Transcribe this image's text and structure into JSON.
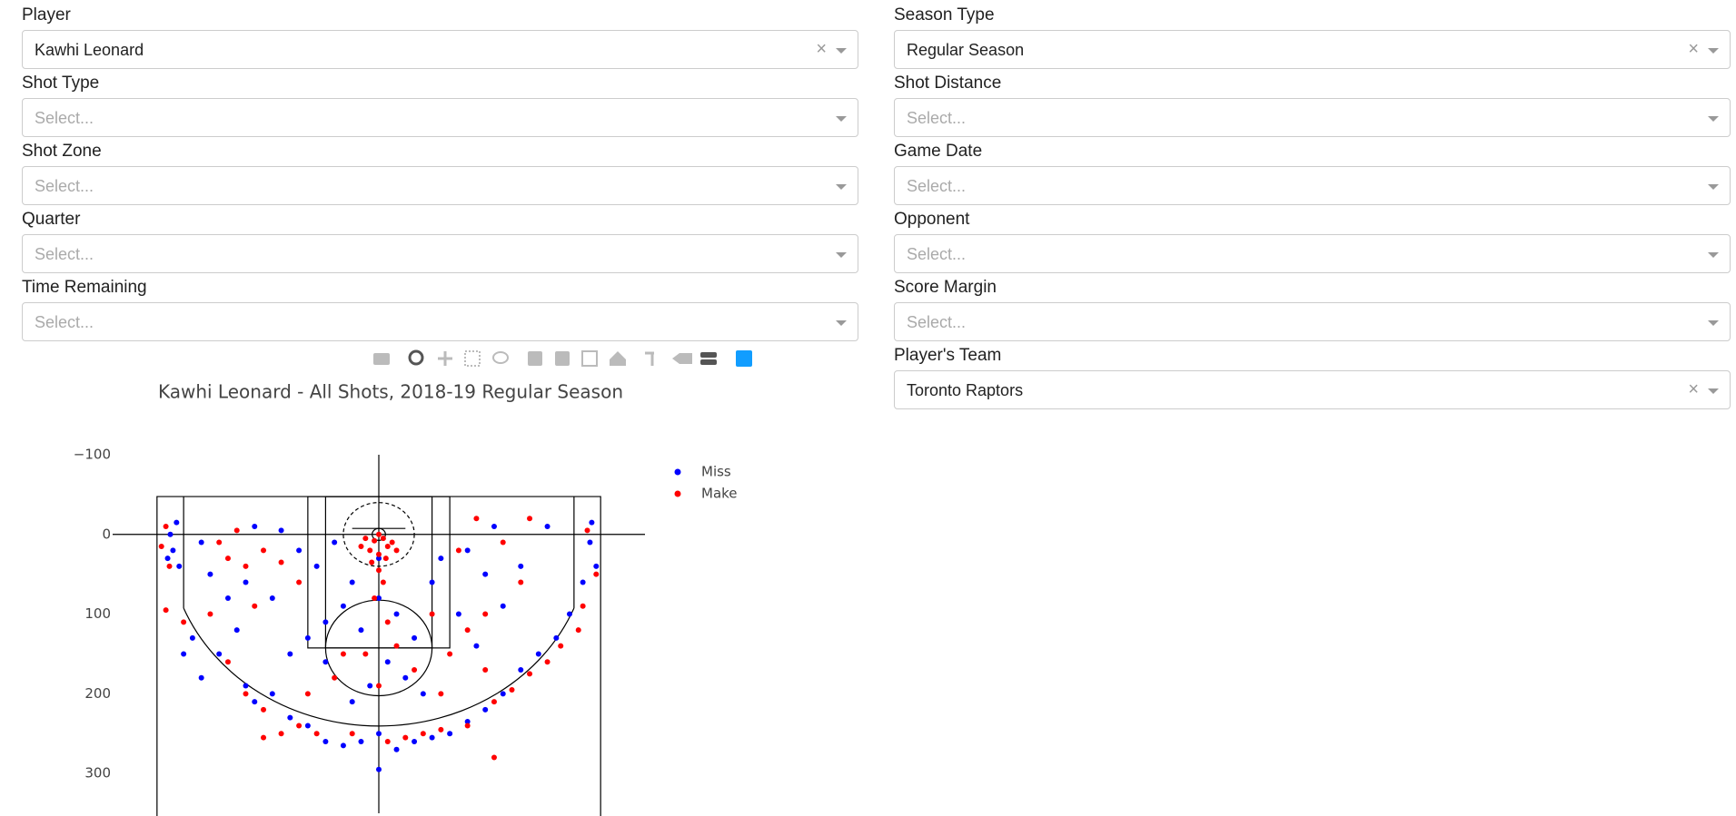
{
  "filters": {
    "left": [
      {
        "label": "Player",
        "value": "Kawhi Leonard"
      },
      {
        "label": "Shot Type",
        "placeholder": "Select..."
      },
      {
        "label": "Shot Zone",
        "placeholder": "Select..."
      },
      {
        "label": "Quarter",
        "placeholder": "Select..."
      },
      {
        "label": "Time Remaining",
        "placeholder": "Select..."
      }
    ],
    "right": [
      {
        "label": "Season Type",
        "value": "Regular Season"
      },
      {
        "label": "Shot Distance",
        "placeholder": "Select..."
      },
      {
        "label": "Game Date",
        "placeholder": "Select..."
      },
      {
        "label": "Opponent",
        "placeholder": "Select..."
      },
      {
        "label": "Score Margin",
        "placeholder": "Select..."
      },
      {
        "label": "Player's Team",
        "value": "Toronto Raptors"
      }
    ]
  },
  "chart_data": {
    "type": "scatter",
    "title": "Kawhi Leonard - All Shots, 2018-19 Regular Season",
    "xlim": [
      -300,
      300
    ],
    "ylim": [
      -100,
      350
    ],
    "yticks": [
      {
        "value": -100,
        "label": "−100"
      },
      0,
      100,
      200,
      300
    ],
    "series": [
      {
        "name": "Miss",
        "color": "#0000ff",
        "x": [
          -235,
          -232,
          -238,
          -228,
          -225,
          -190,
          -170,
          -200,
          -160,
          -210,
          -180,
          -150,
          -140,
          -120,
          -100,
          -80,
          -60,
          -40,
          -20,
          0,
          0,
          20,
          40,
          60,
          80,
          100,
          120,
          140,
          160,
          180,
          200,
          215,
          240,
          238,
          245,
          230,
          -100,
          -80,
          -60,
          -40,
          -20,
          0,
          20,
          40,
          60,
          70,
          -70,
          -50,
          -30,
          0,
          10,
          -10,
          30,
          -120,
          -90,
          100,
          120,
          90,
          110,
          130,
          160,
          -140,
          -110,
          -60,
          50,
          -30,
          -200,
          -220,
          190,
          140,
          -150
        ],
        "values": [
          0,
          20,
          30,
          -15,
          40,
          50,
          80,
          10,
          120,
          130,
          150,
          190,
          210,
          200,
          230,
          240,
          260,
          265,
          260,
          250,
          295,
          270,
          260,
          255,
          250,
          235,
          220,
          200,
          170,
          150,
          130,
          100,
          -15,
          10,
          40,
          60,
          150,
          130,
          110,
          90,
          120,
          80,
          100,
          130,
          60,
          30,
          40,
          10,
          60,
          30,
          160,
          190,
          180,
          80,
          20,
          20,
          50,
          100,
          140,
          -10,
          40,
          -10,
          -5,
          160,
          200,
          210,
          180,
          150,
          -10,
          90,
          60
        ]
      },
      {
        "name": "Make",
        "color": "#ff0000",
        "x": [
          -240,
          -245,
          -236,
          -240,
          -220,
          -180,
          -170,
          -150,
          -130,
          -110,
          -160,
          -140,
          -190,
          -170,
          -150,
          -130,
          -110,
          -90,
          -70,
          -30,
          10,
          30,
          50,
          -130,
          70,
          100,
          130,
          150,
          170,
          190,
          205,
          225,
          245,
          235,
          230,
          130,
          0,
          5,
          -5,
          10,
          -10,
          15,
          -15,
          20,
          0,
          -20,
          8,
          -8,
          0,
          5,
          -5,
          10,
          -15,
          20,
          0,
          -40,
          60,
          80,
          100,
          120,
          90,
          110,
          140,
          160,
          120,
          -90,
          -50,
          40,
          -80,
          70,
          170
        ],
        "values": [
          -10,
          15,
          40,
          95,
          110,
          10,
          30,
          40,
          20,
          35,
          -5,
          90,
          100,
          160,
          200,
          220,
          250,
          240,
          250,
          250,
          260,
          255,
          250,
          255,
          245,
          240,
          210,
          195,
          175,
          160,
          140,
          120,
          50,
          -5,
          90,
          280,
          0,
          5,
          8,
          15,
          20,
          10,
          5,
          20,
          25,
          15,
          30,
          35,
          45,
          60,
          80,
          110,
          150,
          140,
          190,
          150,
          100,
          150,
          120,
          170,
          20,
          -20,
          10,
          60,
          100,
          60,
          180,
          170,
          200,
          200,
          -20
        ]
      }
    ]
  }
}
